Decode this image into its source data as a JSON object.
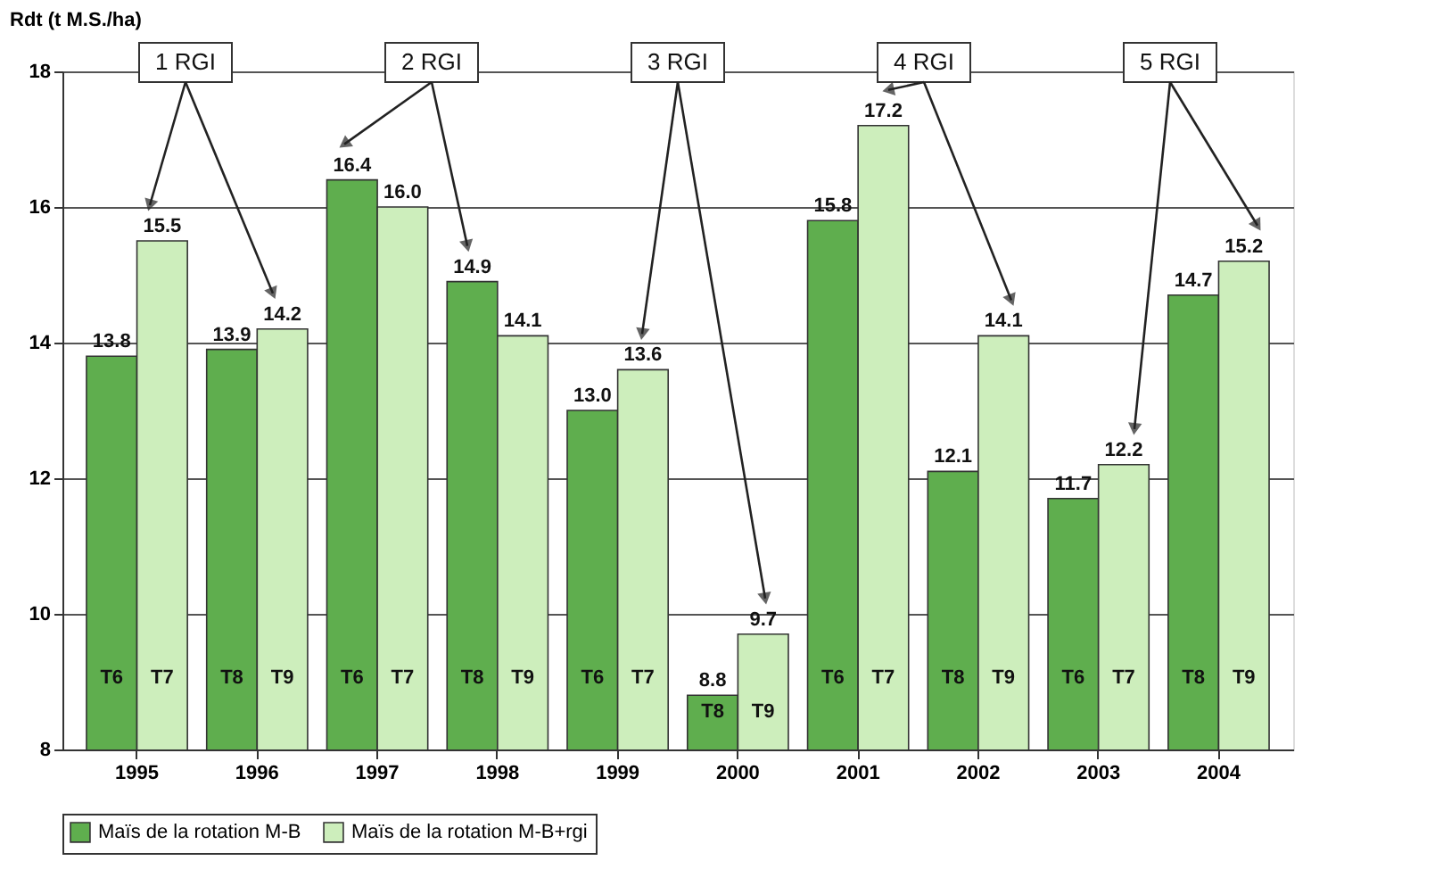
{
  "chart_data": {
    "type": "bar",
    "ylabel": "Rdt (t M.S./ha)",
    "categories": [
      "1995",
      "1996",
      "1997",
      "1998",
      "1999",
      "2000",
      "2001",
      "2002",
      "2003",
      "2004"
    ],
    "series": [
      {
        "name": "Maïs de la rotation M-B",
        "color": "#5fae4e",
        "values": [
          13.8,
          13.9,
          16.4,
          14.9,
          13.0,
          8.8,
          15.8,
          12.1,
          11.7,
          14.7
        ],
        "value_labels": [
          "13.8",
          "13.9",
          "16.4",
          "14.9",
          "13.0",
          "8.8",
          "15.8",
          "12.1",
          "11.7",
          "14.7"
        ]
      },
      {
        "name": "Maïs de la rotation M-B+rgi",
        "color": "#cdeebc",
        "values": [
          15.5,
          14.2,
          16.0,
          14.1,
          13.6,
          9.7,
          17.2,
          14.1,
          12.2,
          15.2
        ],
        "value_labels": [
          "15.5",
          "14.2",
          "16.0",
          "14.1",
          "13.6",
          "9.7",
          "17.2",
          "14.1",
          "12.2",
          "15.2"
        ]
      }
    ],
    "ylim": [
      8,
      18
    ],
    "yticks": [
      8,
      10,
      12,
      14,
      16,
      18
    ],
    "grid": "y",
    "legend": "bottom",
    "annotations": [
      "1 RGI",
      "2 RGI",
      "3 RGI",
      "4 RGI",
      "5 RGI",
      {
        "text": "T6",
        "x": "1995",
        "y": 8.9
      },
      {
        "text": "T7",
        "x": "1995",
        "y": 8.9
      },
      {
        "text": "T8",
        "x": "1996",
        "y": 8.9
      },
      {
        "text": "T9",
        "x": "1996",
        "y": 8.9
      },
      {
        "text": "T6",
        "x": "1997",
        "y": 8.9
      },
      {
        "text": "T7",
        "x": "1997",
        "y": 8.9
      },
      {
        "text": "T8",
        "x": "1998",
        "y": 8.9
      },
      {
        "text": "T9",
        "x": "1998",
        "y": 8.9
      },
      {
        "text": "T6",
        "x": "1999",
        "y": 8.9
      },
      {
        "text": "T7",
        "x": "1999",
        "y": 8.9
      },
      {
        "text": "T8",
        "x": "2000",
        "y": 8.4
      },
      {
        "text": "T9",
        "x": "2000",
        "y": 8.4
      },
      {
        "text": "T6",
        "x": "2001",
        "y": 8.9
      },
      {
        "text": "T7",
        "x": "2001",
        "y": 8.9
      },
      {
        "text": "T8",
        "x": "2002",
        "y": 8.9
      },
      {
        "text": "T9",
        "x": "2002",
        "y": 8.9
      },
      {
        "text": "T6",
        "x": "2003",
        "y": 8.9
      },
      {
        "text": "T7",
        "x": "2003",
        "y": 8.9
      },
      {
        "text": "T8",
        "x": "2004",
        "y": 8.9
      },
      {
        "text": "T9",
        "x": "2004",
        "y": 8.9
      }
    ]
  }
}
